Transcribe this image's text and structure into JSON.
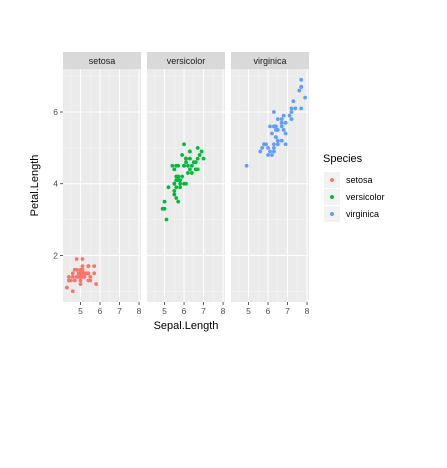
{
  "chart_data": {
    "type": "scatter",
    "facet_by": "Species",
    "xlabel": "Sepal.Length",
    "ylabel": "Petal.Length",
    "xlim": [
      4.1,
      8.1
    ],
    "ylim": [
      0.7,
      7.2
    ],
    "x_ticks": [
      5,
      6,
      7,
      8
    ],
    "y_ticks": [
      2,
      4,
      6
    ],
    "grid": true,
    "legend": {
      "title": "Species",
      "position": "right",
      "items": [
        {
          "label": "setosa",
          "color": "#F8766D"
        },
        {
          "label": "versicolor",
          "color": "#00BA38"
        },
        {
          "label": "virginica",
          "color": "#619CFF"
        }
      ]
    },
    "panels": [
      {
        "label": "setosa",
        "color": "#F8766D",
        "points": [
          [
            5.1,
            1.4
          ],
          [
            4.9,
            1.4
          ],
          [
            4.7,
            1.3
          ],
          [
            4.6,
            1.5
          ],
          [
            5.0,
            1.4
          ],
          [
            5.4,
            1.7
          ],
          [
            4.6,
            1.4
          ],
          [
            5.0,
            1.5
          ],
          [
            4.4,
            1.4
          ],
          [
            4.9,
            1.5
          ],
          [
            5.4,
            1.5
          ],
          [
            4.8,
            1.6
          ],
          [
            4.8,
            1.4
          ],
          [
            4.3,
            1.1
          ],
          [
            5.8,
            1.2
          ],
          [
            5.7,
            1.5
          ],
          [
            5.4,
            1.3
          ],
          [
            5.1,
            1.4
          ],
          [
            5.7,
            1.7
          ],
          [
            5.1,
            1.5
          ],
          [
            5.4,
            1.7
          ],
          [
            5.1,
            1.5
          ],
          [
            4.6,
            1.0
          ],
          [
            5.1,
            1.7
          ],
          [
            4.8,
            1.9
          ],
          [
            5.0,
            1.6
          ],
          [
            5.0,
            1.6
          ],
          [
            5.2,
            1.5
          ],
          [
            5.2,
            1.4
          ],
          [
            4.7,
            1.6
          ],
          [
            4.8,
            1.6
          ],
          [
            5.4,
            1.5
          ],
          [
            5.2,
            1.5
          ],
          [
            5.5,
            1.4
          ],
          [
            4.9,
            1.5
          ],
          [
            5.0,
            1.2
          ],
          [
            5.5,
            1.3
          ],
          [
            4.9,
            1.4
          ],
          [
            4.4,
            1.3
          ],
          [
            5.1,
            1.5
          ],
          [
            5.0,
            1.3
          ],
          [
            4.5,
            1.3
          ],
          [
            4.4,
            1.3
          ],
          [
            5.0,
            1.6
          ],
          [
            5.1,
            1.9
          ],
          [
            4.8,
            1.4
          ],
          [
            5.1,
            1.6
          ],
          [
            4.6,
            1.4
          ],
          [
            5.3,
            1.5
          ],
          [
            5.0,
            1.4
          ]
        ]
      },
      {
        "label": "versicolor",
        "color": "#00BA38",
        "points": [
          [
            7.0,
            4.7
          ],
          [
            6.4,
            4.5
          ],
          [
            6.9,
            4.9
          ],
          [
            5.5,
            4.0
          ],
          [
            6.5,
            4.6
          ],
          [
            5.7,
            4.5
          ],
          [
            6.3,
            4.7
          ],
          [
            4.9,
            3.3
          ],
          [
            6.6,
            4.6
          ],
          [
            5.2,
            3.9
          ],
          [
            5.0,
            3.5
          ],
          [
            5.9,
            4.2
          ],
          [
            6.0,
            4.0
          ],
          [
            6.1,
            4.7
          ],
          [
            5.6,
            3.6
          ],
          [
            6.7,
            4.4
          ],
          [
            5.6,
            4.5
          ],
          [
            5.8,
            4.1
          ],
          [
            6.2,
            4.5
          ],
          [
            5.6,
            3.9
          ],
          [
            5.9,
            4.8
          ],
          [
            6.1,
            4.0
          ],
          [
            6.3,
            4.9
          ],
          [
            6.1,
            4.7
          ],
          [
            6.4,
            4.3
          ],
          [
            6.6,
            4.4
          ],
          [
            6.8,
            4.8
          ],
          [
            6.7,
            5.0
          ],
          [
            6.0,
            4.5
          ],
          [
            5.7,
            3.5
          ],
          [
            5.5,
            3.8
          ],
          [
            5.5,
            3.7
          ],
          [
            5.8,
            3.9
          ],
          [
            6.0,
            5.1
          ],
          [
            5.4,
            4.5
          ],
          [
            6.0,
            4.5
          ],
          [
            6.7,
            4.7
          ],
          [
            6.3,
            4.4
          ],
          [
            5.6,
            4.1
          ],
          [
            5.5,
            4.0
          ],
          [
            5.5,
            4.4
          ],
          [
            6.1,
            4.6
          ],
          [
            5.8,
            4.0
          ],
          [
            5.0,
            3.3
          ],
          [
            5.6,
            4.2
          ],
          [
            5.7,
            4.2
          ],
          [
            5.7,
            4.2
          ],
          [
            6.2,
            4.3
          ],
          [
            5.1,
            3.0
          ],
          [
            5.7,
            4.1
          ]
        ]
      },
      {
        "label": "virginica",
        "color": "#619CFF",
        "points": [
          [
            6.3,
            6.0
          ],
          [
            5.8,
            5.1
          ],
          [
            7.1,
            5.9
          ],
          [
            6.3,
            5.6
          ],
          [
            6.5,
            5.8
          ],
          [
            7.6,
            6.6
          ],
          [
            4.9,
            4.5
          ],
          [
            7.3,
            6.3
          ],
          [
            6.7,
            5.8
          ],
          [
            7.2,
            6.1
          ],
          [
            6.5,
            5.1
          ],
          [
            6.4,
            5.3
          ],
          [
            6.8,
            5.5
          ],
          [
            5.7,
            5.0
          ],
          [
            5.8,
            5.1
          ],
          [
            6.4,
            5.3
          ],
          [
            6.5,
            5.5
          ],
          [
            7.7,
            6.7
          ],
          [
            7.7,
            6.9
          ],
          [
            6.0,
            5.0
          ],
          [
            6.9,
            5.7
          ],
          [
            5.6,
            4.9
          ],
          [
            7.7,
            6.7
          ],
          [
            6.3,
            4.9
          ],
          [
            6.7,
            5.7
          ],
          [
            7.2,
            6.0
          ],
          [
            6.2,
            4.8
          ],
          [
            6.1,
            4.9
          ],
          [
            6.4,
            5.6
          ],
          [
            7.2,
            5.8
          ],
          [
            7.4,
            6.1
          ],
          [
            7.9,
            6.4
          ],
          [
            6.4,
            5.6
          ],
          [
            6.3,
            5.1
          ],
          [
            6.1,
            5.6
          ],
          [
            7.7,
            6.1
          ],
          [
            6.3,
            5.6
          ],
          [
            6.4,
            5.5
          ],
          [
            6.0,
            4.8
          ],
          [
            6.9,
            5.4
          ],
          [
            6.7,
            5.6
          ],
          [
            6.9,
            5.1
          ],
          [
            5.8,
            5.1
          ],
          [
            6.8,
            5.9
          ],
          [
            6.7,
            5.7
          ],
          [
            6.7,
            5.2
          ],
          [
            6.3,
            5.0
          ],
          [
            6.5,
            5.2
          ],
          [
            6.2,
            5.4
          ],
          [
            5.9,
            5.1
          ]
        ]
      }
    ]
  }
}
